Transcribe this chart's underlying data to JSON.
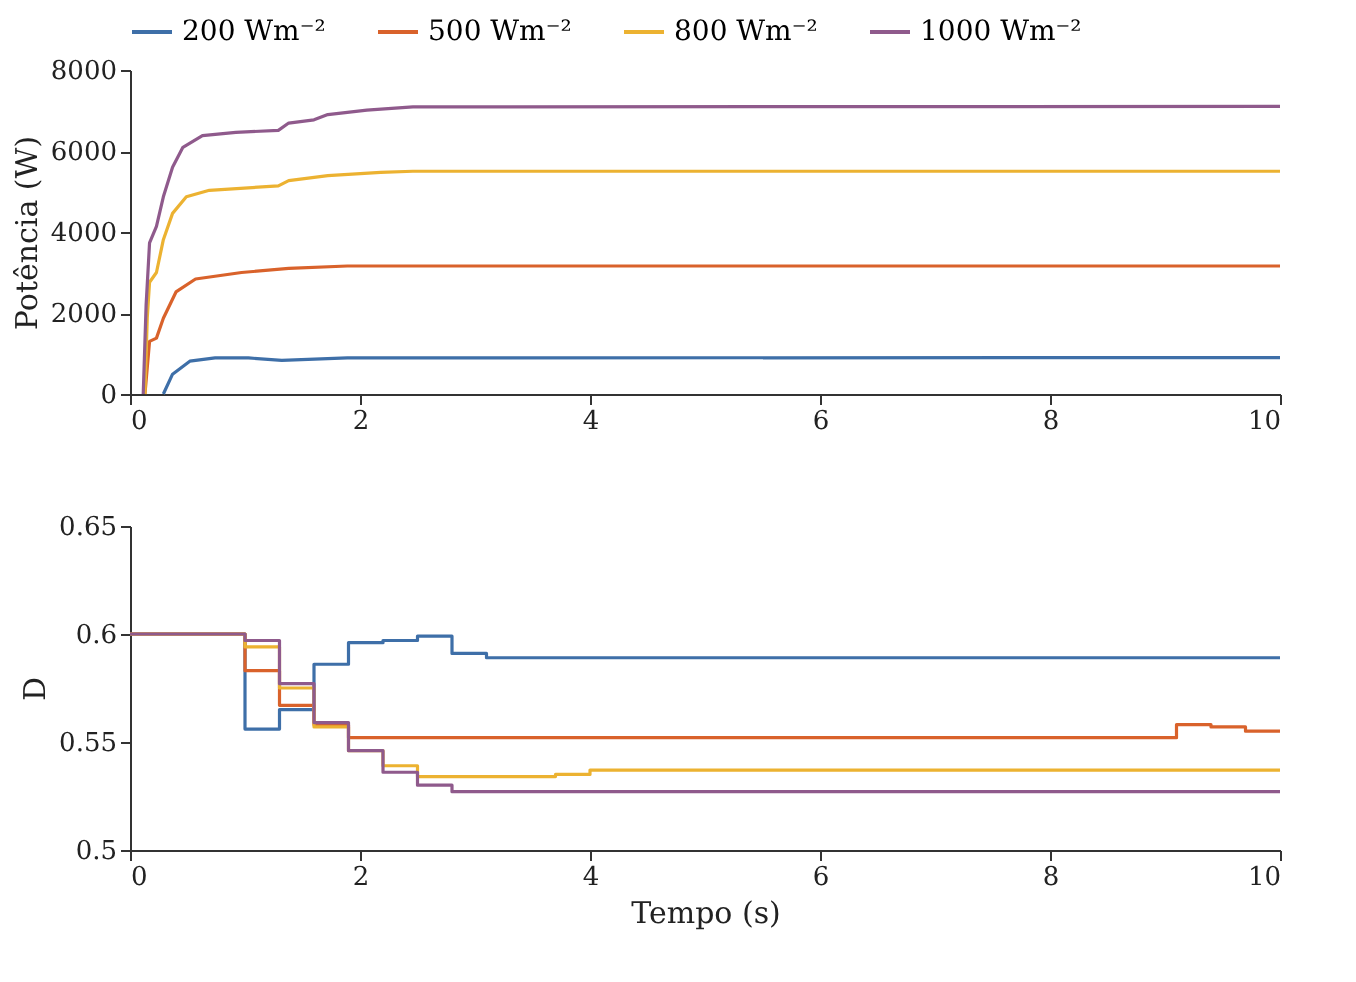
{
  "chart_data": [
    {
      "type": "line",
      "ylabel": "Potência (W)",
      "xlim": [
        0,
        10
      ],
      "xticks": [
        0,
        2,
        4,
        6,
        8,
        10
      ],
      "ylim": [
        0,
        8000
      ],
      "yticks": [
        0,
        2000,
        4000,
        6000,
        8000
      ],
      "grid": false,
      "legend": "top",
      "marker": "none",
      "line_style": "solid",
      "series": [
        {
          "name": "200 Wm⁻²",
          "color": "#3e6fa8",
          "x": [
            0.29,
            0.37,
            0.52,
            0.74,
            1.03,
            1.32,
            1.89,
            10
          ],
          "values": [
            0,
            490,
            810,
            890,
            890,
            830,
            890,
            900
          ]
        },
        {
          "name": "500 Wm⁻²",
          "color": "#d9622b",
          "x": [
            0.13,
            0.17,
            0.23,
            0.29,
            0.4,
            0.57,
            0.97,
            1.38,
            1.89,
            10
          ],
          "values": [
            0,
            1300,
            1380,
            1870,
            2520,
            2840,
            3000,
            3100,
            3160,
            3160
          ]
        },
        {
          "name": "800 Wm⁻²",
          "color": "#ecb231",
          "x": [
            0.13,
            0.15,
            0.17,
            0.23,
            0.29,
            0.37,
            0.49,
            0.69,
            1.29,
            1.38,
            1.72,
            2.18,
            2.46,
            10
          ],
          "values": [
            0,
            1870,
            2760,
            3000,
            3810,
            4460,
            4870,
            5030,
            5140,
            5270,
            5390,
            5470,
            5500,
            5500
          ]
        },
        {
          "name": "1000 Wm⁻²",
          "color": "#8f5a8c",
          "x": [
            0.115,
            0.14,
            0.17,
            0.23,
            0.29,
            0.37,
            0.46,
            0.63,
            0.92,
            1.29,
            1.38,
            1.6,
            1.72,
            2.06,
            2.46,
            10
          ],
          "values": [
            0,
            2190,
            3730,
            4140,
            4870,
            5600,
            6090,
            6380,
            6460,
            6510,
            6690,
            6770,
            6900,
            7010,
            7090,
            7100
          ]
        }
      ]
    },
    {
      "type": "step",
      "xlabel": "Tempo (s)",
      "ylabel": "D",
      "xlim": [
        0,
        10
      ],
      "xticks": [
        0,
        2,
        4,
        6,
        8,
        10
      ],
      "ylim": [
        0.5,
        0.65
      ],
      "yticks": [
        0.5,
        0.55,
        0.6,
        0.65
      ],
      "grid": false,
      "legend": false,
      "marker": "none",
      "line_style": "solid",
      "series": [
        {
          "name": "200 Wm⁻²",
          "color": "#3e6fa8",
          "x": [
            0,
            1.0,
            1.3,
            1.6,
            1.9,
            2.2,
            2.5,
            2.8,
            3.1,
            10
          ],
          "values": [
            0.6,
            0.556,
            0.565,
            0.586,
            0.596,
            0.597,
            0.599,
            0.591,
            0.589,
            0.589
          ]
        },
        {
          "name": "500 Wm⁻²",
          "color": "#d9622b",
          "x": [
            0,
            1.0,
            1.3,
            1.6,
            1.9,
            9.1,
            9.4,
            9.7,
            10
          ],
          "values": [
            0.6,
            0.583,
            0.567,
            0.558,
            0.552,
            0.558,
            0.557,
            0.555,
            0.555
          ]
        },
        {
          "name": "800 Wm⁻²",
          "color": "#ecb231",
          "x": [
            0,
            1.0,
            1.3,
            1.6,
            1.9,
            2.2,
            2.5,
            3.7,
            4.0,
            10
          ],
          "values": [
            0.6,
            0.594,
            0.575,
            0.557,
            0.546,
            0.539,
            0.534,
            0.535,
            0.537,
            0.537
          ]
        },
        {
          "name": "1000 Wm⁻²",
          "color": "#8f5a8c",
          "x": [
            0,
            1.0,
            1.3,
            1.6,
            1.9,
            2.2,
            2.5,
            2.8,
            3.1,
            10
          ],
          "values": [
            0.6,
            0.597,
            0.577,
            0.559,
            0.546,
            0.536,
            0.53,
            0.527,
            0.527,
            0.527
          ]
        }
      ]
    }
  ]
}
